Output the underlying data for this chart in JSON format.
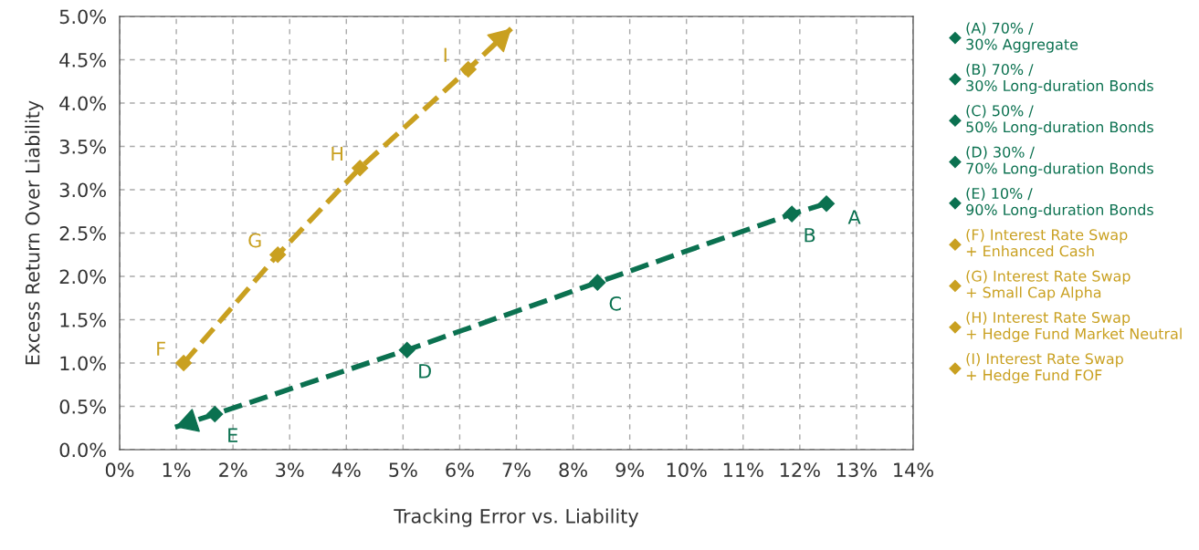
{
  "chart_data": {
    "type": "scatter",
    "xlabel": "Tracking Error vs. Liability",
    "ylabel": "Excess Return Over Liability",
    "xlim": [
      0,
      14
    ],
    "xticks": [
      {
        "value": 0,
        "label": "0%"
      },
      {
        "value": 1,
        "label": "1%"
      },
      {
        "value": 2,
        "label": "2%"
      },
      {
        "value": 3,
        "label": "3%"
      },
      {
        "value": 4,
        "label": "4%"
      },
      {
        "value": 5,
        "label": "5%"
      },
      {
        "value": 6,
        "label": "6%"
      },
      {
        "value": 7,
        "label": "7%"
      },
      {
        "value": 8,
        "label": "8%"
      },
      {
        "value": 9,
        "label": "9%"
      },
      {
        "value": 10,
        "label": "10%"
      },
      {
        "value": 11,
        "label": "11%"
      },
      {
        "value": 12,
        "label": "12%"
      },
      {
        "value": 13,
        "label": "13%"
      },
      {
        "value": 14,
        "label": "14%"
      }
    ],
    "ylim": [
      0,
      5
    ],
    "yticks": [
      {
        "value": 0,
        "label": "0.0%"
      },
      {
        "value": 0.5,
        "label": "0.5%"
      },
      {
        "value": 1,
        "label": "1.0%"
      },
      {
        "value": 1.5,
        "label": "1.5%"
      },
      {
        "value": 2,
        "label": "2.0%"
      },
      {
        "value": 2.5,
        "label": "2.5%"
      },
      {
        "value": 3,
        "label": "3.0%"
      },
      {
        "value": 3.5,
        "label": "3.5%"
      },
      {
        "value": 4,
        "label": "4.0%"
      },
      {
        "value": 4.5,
        "label": "4.5%"
      },
      {
        "value": 5,
        "label": "5.0%"
      }
    ],
    "grid": true,
    "legend": "right",
    "marker": "diamond",
    "series": [
      {
        "name": "(A) 70% /\n30% Aggregate",
        "color": "#0b7150",
        "x": [
          12.47
        ],
        "values": [
          2.84
        ]
      },
      {
        "name": "(B) 70% /\n30% Long-duration Bonds",
        "color": "#0b7150",
        "x": [
          11.86
        ],
        "values": [
          2.72
        ]
      },
      {
        "name": "(C) 50% /\n50% Long-duration Bonds",
        "color": "#0b7150",
        "x": [
          8.43
        ],
        "values": [
          1.93
        ]
      },
      {
        "name": "(D) 30% /\n70% Long-duration Bonds",
        "color": "#0b7150",
        "x": [
          5.07
        ],
        "values": [
          1.15
        ]
      },
      {
        "name": "(E) 10% /\n90% Long-duration Bonds",
        "color": "#0b7150",
        "x": [
          1.68
        ],
        "values": [
          0.41
        ]
      },
      {
        "name": "(F) Interest Rate Swap\n+ Enhanced Cash",
        "color": "#c9a020",
        "x": [
          1.13
        ],
        "values": [
          1.0
        ]
      },
      {
        "name": "(G) Interest Rate Swap\n+ Small Cap Alpha",
        "color": "#c9a020",
        "x": [
          2.79
        ],
        "values": [
          2.25
        ]
      },
      {
        "name": "(H) Interest Rate Swap\n+ Hedge Fund Market Neutral",
        "color": "#c9a020",
        "x": [
          4.24
        ],
        "values": [
          3.25
        ]
      },
      {
        "name": "(I) Interest Rate Swap\n+ Hedge Fund FOF",
        "color": "#c9a020",
        "x": [
          6.15
        ],
        "values": [
          4.39
        ]
      },
      {
        "type": "line",
        "color": "#0b7150",
        "marker": "none",
        "line_style": "dashed",
        "x": [
          12.47,
          11.86,
          8.43,
          5.07,
          1.68,
          0.98
        ],
        "values": [
          2.84,
          2.72,
          1.93,
          1.15,
          0.41,
          0.26
        ]
      },
      {
        "type": "line",
        "color": "#c9a020",
        "marker": "none",
        "line_style": "dashed",
        "x": [
          1.13,
          2.79,
          4.24,
          6.15,
          6.91
        ],
        "values": [
          1.0,
          2.25,
          3.25,
          4.39,
          4.86
        ]
      }
    ],
    "annotations": [
      {
        "text": "A",
        "x": 12.47,
        "y": 2.84
      },
      {
        "text": "B",
        "x": 11.86,
        "y": 2.72
      },
      {
        "text": "C",
        "x": 8.43,
        "y": 1.93
      },
      {
        "text": "D",
        "x": 5.07,
        "y": 1.15
      },
      {
        "text": "E",
        "x": 1.68,
        "y": 0.41
      },
      {
        "text": "F",
        "x": 1.13,
        "y": 1.0
      },
      {
        "text": "G",
        "x": 2.79,
        "y": 2.25
      },
      {
        "text": "H",
        "x": 4.24,
        "y": 3.25
      },
      {
        "text": "I",
        "x": 6.15,
        "y": 4.39
      }
    ]
  }
}
